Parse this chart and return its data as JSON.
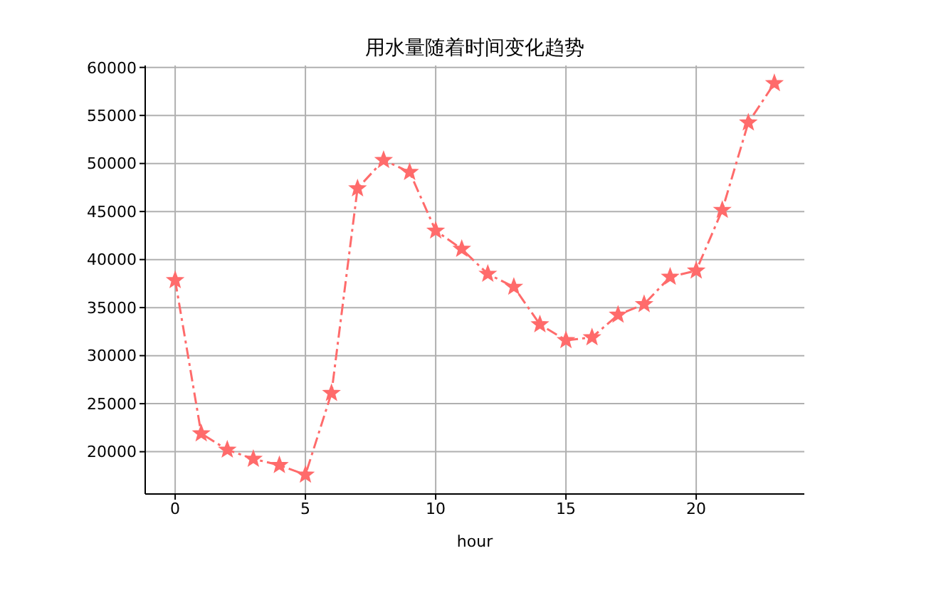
{
  "chart_data": {
    "type": "line",
    "title": "用水量随着时间变化趋势",
    "xlabel": "hour",
    "x": [
      0,
      1,
      2,
      3,
      4,
      5,
      6,
      7,
      8,
      9,
      10,
      11,
      12,
      13,
      14,
      15,
      16,
      17,
      18,
      19,
      20,
      21,
      22,
      23
    ],
    "series": [
      {
        "color": "#ff6b6b",
        "values": [
          37850,
          21900,
          20200,
          19250,
          18600,
          17600,
          26100,
          47400,
          50350,
          49100,
          43000,
          41100,
          38500,
          37150,
          33250,
          31600,
          31900,
          34250,
          35350,
          38200,
          38850,
          45150,
          54250,
          58350
        ]
      }
    ],
    "xlim": [
      -1.15,
      24.15
    ],
    "xticks": [
      0,
      5,
      10,
      15,
      20
    ],
    "ylim": [
      15600,
      60200
    ],
    "yticks": [
      20000,
      25000,
      30000,
      35000,
      40000,
      45000,
      50000,
      55000,
      60000
    ],
    "grid": true,
    "marker": "star",
    "line_style": "dashed"
  }
}
